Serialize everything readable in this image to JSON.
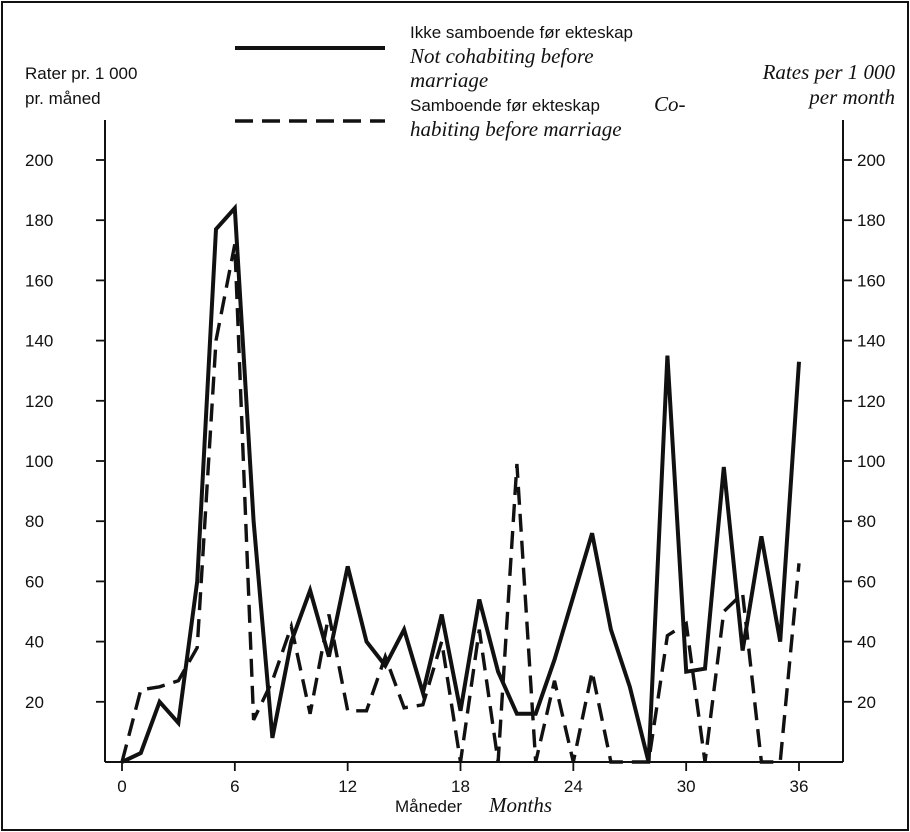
{
  "chart_data": {
    "type": "line",
    "left_ylabel": [
      "Rater pr. 1 000",
      "pr. måned"
    ],
    "right_ylabel": [
      "Rates per 1 000",
      "per month"
    ],
    "xlabel_no": "Måneder",
    "xlabel_en": "Months",
    "xlim": [
      0,
      36
    ],
    "ylim": [
      0,
      200
    ],
    "x_ticks": [
      0,
      6,
      12,
      18,
      24,
      30,
      36
    ],
    "y_ticks": [
      20,
      40,
      60,
      80,
      100,
      120,
      140,
      160,
      180,
      200
    ],
    "legend_placement": "top-center",
    "series": [
      {
        "name_no": "Ikke samboende før ekteskap",
        "name_en": [
          "Not cohabiting before",
          "marriage"
        ],
        "style": "solid",
        "x": [
          0,
          1,
          2,
          3,
          4,
          5,
          6,
          7,
          8,
          9,
          10,
          11,
          12,
          13,
          14,
          15,
          16,
          17,
          18,
          19,
          20,
          21,
          22,
          23,
          24,
          25,
          26,
          27,
          28,
          29,
          30,
          31,
          32,
          33,
          34,
          35,
          36
        ],
        "values": [
          0,
          3,
          20,
          13,
          60,
          177,
          184,
          80,
          8,
          40,
          57,
          35,
          65,
          40,
          32,
          44,
          23,
          49,
          17,
          54,
          30,
          16,
          16,
          34,
          55,
          76,
          44,
          25,
          0,
          135,
          30,
          31,
          98,
          37,
          75,
          40,
          133
        ]
      },
      {
        "name_no": "Samboende før ekteskap",
        "name_en": [
          "Co-",
          "habiting before marriage"
        ],
        "style": "dashed",
        "x": [
          0,
          1,
          2,
          3,
          4,
          5,
          6,
          7,
          8,
          9,
          10,
          11,
          12,
          13,
          14,
          15,
          16,
          17,
          18,
          19,
          20,
          21,
          22,
          23,
          24,
          25,
          26,
          27,
          28,
          29,
          30,
          31,
          32,
          33,
          34,
          35,
          36
        ],
        "values": [
          0,
          24,
          25,
          27,
          38,
          140,
          172,
          14,
          27,
          45,
          16,
          49,
          17,
          17,
          35,
          18,
          19,
          40,
          0,
          44,
          0,
          99,
          0,
          27,
          0,
          30,
          0,
          0,
          0,
          42,
          46,
          0,
          50,
          56,
          0,
          0,
          66
        ]
      }
    ]
  }
}
